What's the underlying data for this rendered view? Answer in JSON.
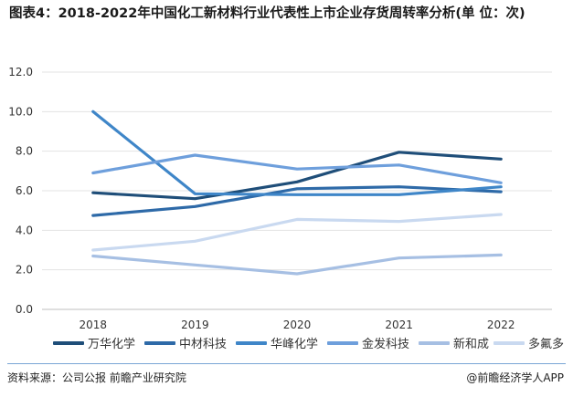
{
  "title": "图表4：2018-2022年中国化工新材料行业代表性上市企业存货周转率分析(单 位：次)",
  "source": "资料来源：公司公报 前瞻产业研究院",
  "brand": "@前瞻经济学人APP",
  "chart_data": {
    "type": "line",
    "x": [
      "2018",
      "2019",
      "2020",
      "2021",
      "2022"
    ],
    "ylim": [
      0,
      12
    ],
    "yticks": [
      "0.0",
      "2.0",
      "4.0",
      "6.0",
      "8.0",
      "10.0",
      "12.0"
    ],
    "grid": true,
    "legend_position": "bottom",
    "series": [
      {
        "name": "万华化学",
        "values": [
          5.9,
          5.6,
          6.45,
          7.95,
          7.6
        ],
        "color": "#1f4e79"
      },
      {
        "name": "中材科技",
        "values": [
          4.75,
          5.2,
          6.1,
          6.2,
          5.95
        ],
        "color": "#2e6aa8"
      },
      {
        "name": "华峰化学",
        "values": [
          10.0,
          5.85,
          5.8,
          5.8,
          6.2
        ],
        "color": "#3f86c8"
      },
      {
        "name": "金发科技",
        "values": [
          6.9,
          7.8,
          7.1,
          7.3,
          6.4
        ],
        "color": "#6e9fdc"
      },
      {
        "name": "新和成",
        "values": [
          2.7,
          2.25,
          1.8,
          2.6,
          2.75
        ],
        "color": "#a6bfe3"
      },
      {
        "name": "多氟多",
        "values": [
          3.0,
          3.45,
          4.55,
          4.45,
          4.8
        ],
        "color": "#c9d9f0"
      }
    ]
  }
}
